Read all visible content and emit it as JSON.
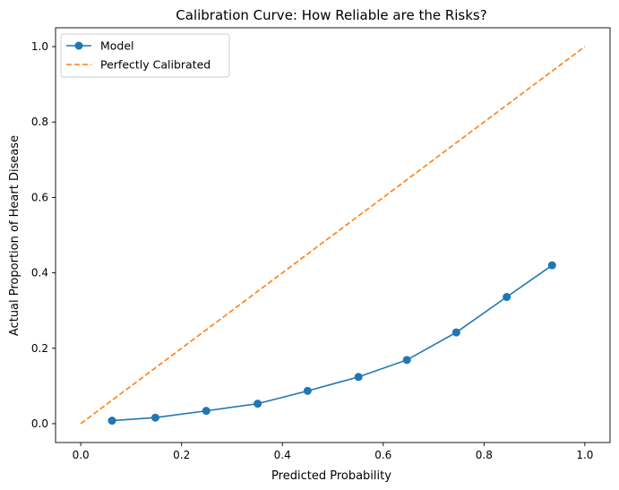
{
  "chart_data": {
    "type": "line",
    "title": "Calibration Curve: How Reliable are the Risks?",
    "xlabel": "Predicted Probability",
    "ylabel": "Actual Proportion of Heart Disease",
    "xlim": [
      -0.05,
      1.05
    ],
    "ylim": [
      -0.05,
      1.05
    ],
    "xticks": [
      "0.0",
      "0.2",
      "0.4",
      "0.6",
      "0.8",
      "1.0"
    ],
    "yticks": [
      "0.0",
      "0.2",
      "0.4",
      "0.6",
      "0.8",
      "1.0"
    ],
    "grid": false,
    "legend_position": "top-left",
    "series": [
      {
        "name": "Model",
        "color": "#1f77b4",
        "style": "solid",
        "marker": "circle",
        "x": [
          0.062,
          0.148,
          0.249,
          0.351,
          0.45,
          0.551,
          0.647,
          0.745,
          0.845,
          0.935
        ],
        "y": [
          0.008,
          0.016,
          0.034,
          0.053,
          0.087,
          0.124,
          0.169,
          0.242,
          0.336,
          0.42
        ]
      },
      {
        "name": "Perfectly Calibrated",
        "color": "#ff7f0e",
        "style": "dashed",
        "marker": "none",
        "x": [
          0,
          1
        ],
        "y": [
          0,
          1
        ]
      }
    ]
  }
}
